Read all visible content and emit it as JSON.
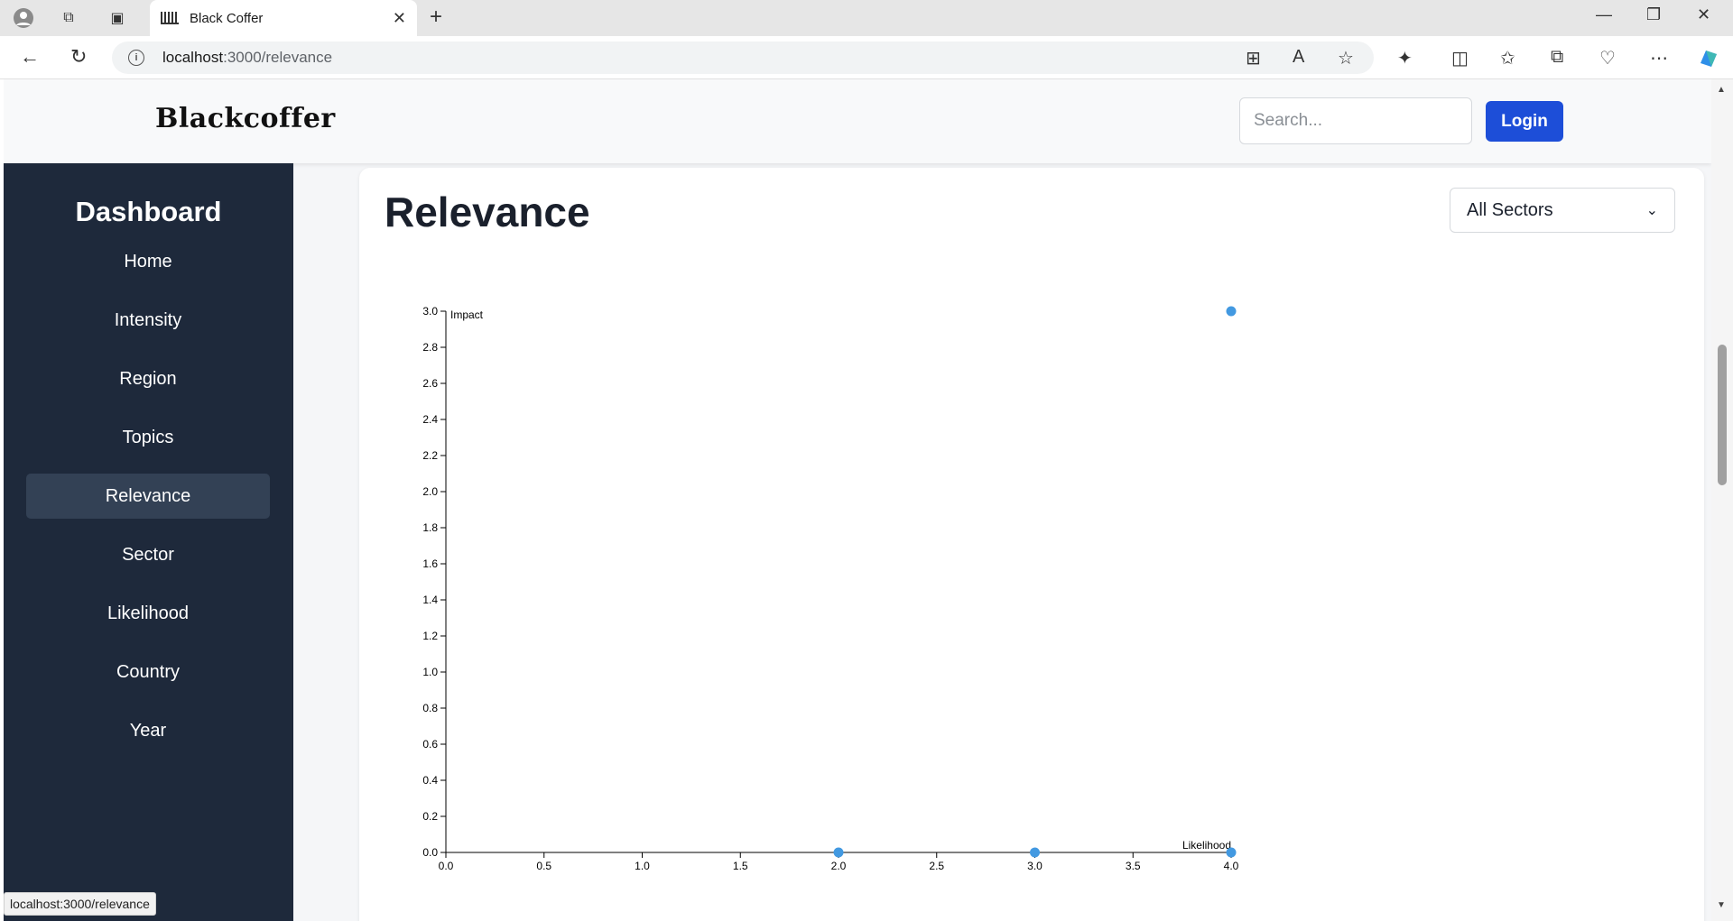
{
  "browser": {
    "tab_title": "Black Coffer",
    "url_host": "localhost",
    "url_path": ":3000/relevance",
    "status_url": "localhost:3000/relevance"
  },
  "header": {
    "logo": "Blackcoffer",
    "search_placeholder": "Search...",
    "login_label": "Login"
  },
  "sidebar": {
    "title": "Dashboard",
    "items": [
      {
        "label": "Home"
      },
      {
        "label": "Intensity"
      },
      {
        "label": "Region"
      },
      {
        "label": "Topics"
      },
      {
        "label": "Relevance",
        "active": true
      },
      {
        "label": "Sector"
      },
      {
        "label": "Likelihood"
      },
      {
        "label": "Country"
      },
      {
        "label": "Year"
      }
    ]
  },
  "main": {
    "title": "Relevance",
    "sector_select": "All Sectors"
  },
  "colors": {
    "accent": "#1d4ed8",
    "sidebar_bg": "#1e293b",
    "point": "#4299e1"
  },
  "chart_data": {
    "type": "scatter",
    "title": "",
    "xlabel": "Likelihood",
    "ylabel": "Impact",
    "xlim": [
      0,
      4
    ],
    "ylim": [
      0,
      3
    ],
    "xticks": [
      "0.0",
      "0.5",
      "1.0",
      "1.5",
      "2.0",
      "2.5",
      "3.0",
      "3.5",
      "4.0"
    ],
    "yticks": [
      "0.0",
      "0.2",
      "0.4",
      "0.6",
      "0.8",
      "1.0",
      "1.2",
      "1.4",
      "1.6",
      "1.8",
      "2.0",
      "2.2",
      "2.4",
      "2.6",
      "2.8",
      "3.0"
    ],
    "points": [
      {
        "x": 2,
        "y": 0
      },
      {
        "x": 3,
        "y": 0
      },
      {
        "x": 4,
        "y": 0
      },
      {
        "x": 4,
        "y": 3
      }
    ],
    "grid": false
  }
}
